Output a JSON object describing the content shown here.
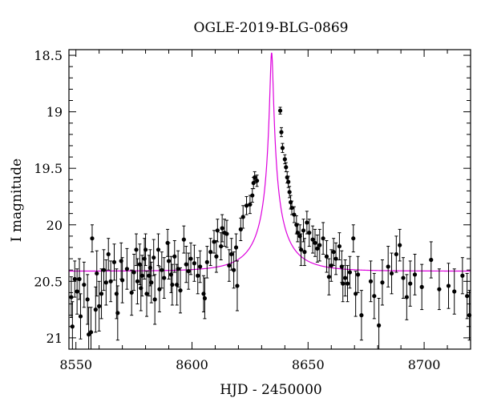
{
  "chart_data": {
    "type": "scatter",
    "title": "OGLE-2019-BLG-0869",
    "xlabel": "HJD - 2450000",
    "ylabel": "I magnitude",
    "xlim": [
      8547,
      8720
    ],
    "ylim": [
      21.1,
      18.45
    ],
    "y_inverted": true,
    "xticks": [
      8550,
      8600,
      8650,
      8700
    ],
    "xtick_labels": [
      "8550",
      "8600",
      "8650",
      "8700"
    ],
    "yticks": [
      18.5,
      19,
      19.5,
      20,
      20.5,
      21
    ],
    "ytick_labels": [
      "18.5",
      "19",
      "19.5",
      "20",
      "20.5",
      "21"
    ],
    "grid": false,
    "colors": {
      "points": "#000000",
      "model": "#dd00dd",
      "frame": "#000000"
    },
    "model_curve": {
      "name": "",
      "t0": 8634.3,
      "u0": 0.039,
      "tE": 17.5,
      "fs": 0.2,
      "baseline_mag": 20.41
    },
    "series": [
      {
        "type": "errorbar",
        "points": [
          [
            8548.0,
            20.64,
            0.18
          ],
          [
            8548.5,
            20.9,
            0.22
          ],
          [
            8549.5,
            20.48,
            0.16
          ],
          [
            8550.5,
            20.59,
            0.2
          ],
          [
            8551.5,
            20.48,
            0.18
          ],
          [
            8552.0,
            20.81,
            0.2
          ],
          [
            8553.5,
            20.53,
            0.2
          ],
          [
            8555.0,
            20.66,
            0.22
          ],
          [
            8555.5,
            20.97,
            0.24
          ],
          [
            8556.5,
            20.95,
            0.22
          ],
          [
            8557.0,
            20.12,
            0.12
          ],
          [
            8558.5,
            20.75,
            0.2
          ],
          [
            8559.0,
            20.43,
            0.2
          ],
          [
            8560.0,
            20.72,
            0.22
          ],
          [
            8561.0,
            20.61,
            0.22
          ],
          [
            8562.0,
            20.4,
            0.18
          ],
          [
            8563.0,
            20.51,
            0.2
          ],
          [
            8564.0,
            20.26,
            0.14
          ],
          [
            8565.0,
            20.5,
            0.18
          ],
          [
            8566.5,
            20.33,
            0.16
          ],
          [
            8567.5,
            20.61,
            0.22
          ],
          [
            8568.0,
            20.78,
            0.24
          ],
          [
            8569.5,
            20.32,
            0.16
          ],
          [
            8570.0,
            20.49,
            0.2
          ],
          [
            8572.0,
            20.39,
            0.18
          ],
          [
            8574.0,
            20.6,
            0.2
          ],
          [
            8575.0,
            20.42,
            0.16
          ],
          [
            8576.0,
            20.22,
            0.14
          ],
          [
            8576.5,
            20.5,
            0.2
          ],
          [
            8577.5,
            20.35,
            0.18
          ],
          [
            8578.0,
            20.56,
            0.2
          ],
          [
            8578.5,
            20.45,
            0.18
          ],
          [
            8579.5,
            20.3,
            0.18
          ],
          [
            8580.0,
            20.22,
            0.14
          ],
          [
            8580.5,
            20.61,
            0.2
          ],
          [
            8581.5,
            20.45,
            0.18
          ],
          [
            8582.0,
            20.38,
            0.16
          ],
          [
            8582.5,
            20.51,
            0.18
          ],
          [
            8583.5,
            20.29,
            0.16
          ],
          [
            8584.0,
            20.66,
            0.22
          ],
          [
            8585.5,
            20.22,
            0.14
          ],
          [
            8586.0,
            20.57,
            0.2
          ],
          [
            8587.0,
            20.4,
            0.16
          ],
          [
            8588.0,
            20.47,
            0.18
          ],
          [
            8589.5,
            20.16,
            0.12
          ],
          [
            8590.0,
            20.32,
            0.16
          ],
          [
            8591.0,
            20.44,
            0.16
          ],
          [
            8591.5,
            20.53,
            0.18
          ],
          [
            8592.5,
            20.28,
            0.14
          ],
          [
            8593.5,
            20.53,
            0.18
          ],
          [
            8594.0,
            20.39,
            0.16
          ],
          [
            8595.0,
            20.58,
            0.2
          ],
          [
            8596.5,
            20.13,
            0.12
          ],
          [
            8597.5,
            20.35,
            0.16
          ],
          [
            8598.5,
            20.41,
            0.16
          ],
          [
            8599.5,
            20.3,
            0.14
          ],
          [
            8601.0,
            20.34,
            0.16
          ],
          [
            8602.5,
            20.45,
            0.16
          ],
          [
            8603.5,
            20.37,
            0.14
          ],
          [
            8605.0,
            20.61,
            0.16
          ],
          [
            8605.5,
            20.65,
            0.18
          ],
          [
            8606.5,
            20.33,
            0.14
          ],
          [
            8608.0,
            20.24,
            0.12
          ],
          [
            8609.5,
            20.15,
            0.1
          ],
          [
            8610.5,
            20.28,
            0.14
          ],
          [
            8611.0,
            20.05,
            0.1
          ],
          [
            8612.5,
            20.19,
            0.12
          ],
          [
            8613.0,
            20.03,
            0.12
          ],
          [
            8614.0,
            20.07,
            0.12
          ],
          [
            8615.0,
            20.08,
            0.12
          ],
          [
            8616.0,
            20.36,
            0.14
          ],
          [
            8617.0,
            20.26,
            0.14
          ],
          [
            8618.0,
            20.4,
            0.16
          ],
          [
            8619.0,
            20.2,
            0.12
          ],
          [
            8619.5,
            20.54,
            0.22
          ],
          [
            8621.0,
            20.04,
            0.1
          ],
          [
            8622.0,
            19.93,
            0.1
          ],
          [
            8623.5,
            19.83,
            0.08
          ],
          [
            8625.0,
            19.82,
            0.08
          ],
          [
            8626.0,
            19.74,
            0.06
          ],
          [
            8626.5,
            19.63,
            0.05
          ],
          [
            8627.0,
            19.58,
            0.05
          ],
          [
            8628.0,
            19.61,
            0.05
          ],
          [
            8638.0,
            18.99,
            0.03
          ],
          [
            8638.5,
            19.18,
            0.04
          ],
          [
            8639.0,
            19.32,
            0.04
          ],
          [
            8640.0,
            19.42,
            0.04
          ],
          [
            8640.5,
            19.49,
            0.04
          ],
          [
            8641.0,
            19.58,
            0.05
          ],
          [
            8641.5,
            19.62,
            0.05
          ],
          [
            8642.0,
            19.71,
            0.05
          ],
          [
            8642.5,
            19.8,
            0.06
          ],
          [
            8643.0,
            19.85,
            0.06
          ],
          [
            8644.0,
            19.91,
            0.07
          ],
          [
            8645.0,
            20.0,
            0.08
          ],
          [
            8645.5,
            20.07,
            0.08
          ],
          [
            8646.5,
            20.1,
            0.1
          ],
          [
            8647.0,
            20.22,
            0.14
          ],
          [
            8648.0,
            20.05,
            0.1
          ],
          [
            8648.5,
            20.24,
            0.12
          ],
          [
            8649.5,
            19.98,
            0.1
          ],
          [
            8650.5,
            20.07,
            0.12
          ],
          [
            8652.0,
            20.13,
            0.12
          ],
          [
            8653.0,
            20.16,
            0.12
          ],
          [
            8654.0,
            20.21,
            0.12
          ],
          [
            8655.0,
            20.18,
            0.14
          ],
          [
            8656.5,
            20.12,
            0.14
          ],
          [
            8658.0,
            20.28,
            0.14
          ],
          [
            8659.0,
            20.46,
            0.16
          ],
          [
            8660.0,
            20.36,
            0.14
          ],
          [
            8661.0,
            20.24,
            0.12
          ],
          [
            8662.0,
            20.3,
            0.14
          ],
          [
            8663.5,
            20.19,
            0.12
          ],
          [
            8664.5,
            20.37,
            0.14
          ],
          [
            8665.0,
            20.52,
            0.16
          ],
          [
            8666.0,
            20.47,
            0.16
          ],
          [
            8667.0,
            20.52,
            0.16
          ],
          [
            8668.0,
            20.42,
            0.14
          ],
          [
            8669.5,
            20.12,
            0.12
          ],
          [
            8670.5,
            20.61,
            0.2
          ],
          [
            8671.5,
            20.44,
            0.16
          ],
          [
            8673.0,
            20.8,
            0.22
          ],
          [
            8677.0,
            20.5,
            0.18
          ],
          [
            8678.5,
            20.63,
            0.2
          ],
          [
            8680.5,
            20.89,
            0.24
          ],
          [
            8682.0,
            20.51,
            0.2
          ],
          [
            8684.5,
            20.37,
            0.18
          ],
          [
            8686.0,
            20.43,
            0.18
          ],
          [
            8688.0,
            20.26,
            0.16
          ],
          [
            8689.5,
            20.18,
            0.14
          ],
          [
            8691.0,
            20.47,
            0.18
          ],
          [
            8692.5,
            20.64,
            0.2
          ],
          [
            8694.0,
            20.52,
            0.2
          ],
          [
            8696.0,
            20.44,
            0.18
          ],
          [
            8699.0,
            20.55,
            0.2
          ],
          [
            8703.0,
            20.31,
            0.16
          ],
          [
            8706.5,
            20.57,
            0.18
          ],
          [
            8710.5,
            20.54,
            0.2
          ],
          [
            8713.0,
            20.59,
            0.2
          ],
          [
            8716.5,
            20.45,
            0.16
          ],
          [
            8718.5,
            20.63,
            0.2
          ],
          [
            8719.5,
            20.8,
            0.22
          ]
        ]
      }
    ]
  }
}
